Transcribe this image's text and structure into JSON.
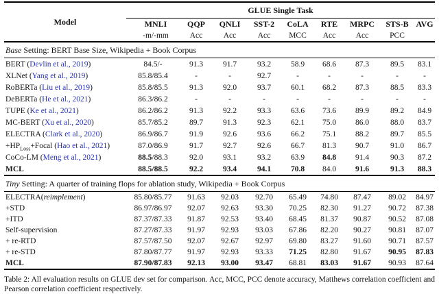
{
  "colors": {
    "citation_blue": "#2a35b0",
    "rule_black": "#000000",
    "background": "#ffffff"
  },
  "table": {
    "title": "GLUE Single Task",
    "model_header": "Model",
    "columns": [
      {
        "label": "MNLI",
        "sub": "-m/-mm"
      },
      {
        "label": "QQP",
        "sub": "Acc"
      },
      {
        "label": "QNLI",
        "sub": "Acc"
      },
      {
        "label": "SST-2",
        "sub": "Acc"
      },
      {
        "label": "CoLA",
        "sub": "MCC"
      },
      {
        "label": "RTE",
        "sub": "Acc"
      },
      {
        "label": "MRPC",
        "sub": "Acc"
      },
      {
        "label": "STS-B",
        "sub": "PCC"
      },
      {
        "label": "AVG",
        "sub": ""
      }
    ],
    "sections": [
      {
        "heading": "*Base* Setting: BERT Base Size, Wikipedia + Book Corpus",
        "size": "base",
        "rows": [
          {
            "model": "BERT",
            "cite": "Devlin et al., 2019",
            "values": [
              "84.5/-",
              "91.3",
              "91.7",
              "93.2",
              "58.9",
              "68.6",
              "87.3",
              "89.5",
              "83.1"
            ]
          },
          {
            "model": "XLNet",
            "cite": "Yang et al., 2019",
            "values": [
              "85.8/85.4",
              "-",
              "-",
              "92.7",
              "-",
              "-",
              "-",
              "-",
              "-"
            ]
          },
          {
            "model": "RoBERTa",
            "cite": "Liu et al., 2019",
            "values": [
              "85.8/85.5",
              "91.3",
              "92.0",
              "93.7",
              "60.1",
              "68.2",
              "87.3",
              "88.5",
              "83.3"
            ]
          },
          {
            "model": "DeBERTa",
            "cite": "He et al., 2021",
            "values": [
              "86.3/86.2",
              "-",
              "-",
              "-",
              "-",
              "-",
              "-",
              "-",
              "-"
            ]
          },
          {
            "model": "TUPE",
            "cite": "Ke et al., 2021",
            "values": [
              "86.2/86.2",
              "91.3",
              "92.2",
              "93.3",
              "63.6",
              "73.6",
              "89.9",
              "89.2",
              "84.9"
            ]
          },
          {
            "model": "MC-BERT",
            "cite": "Xu et al., 2020",
            "values": [
              "85.7/85.2",
              "89.7",
              "91.3",
              "92.3",
              "62.1",
              "75.0",
              "86.0",
              "88.0",
              "83.7"
            ]
          },
          {
            "model": "ELECTRA",
            "cite": "Clark et al., 2020",
            "values": [
              "86.9/86.7",
              "91.9",
              "92.6",
              "93.6",
              "66.2",
              "75.1",
              "88.2",
              "89.7",
              "85.5"
            ]
          },
          {
            "model": "+HP~Loss~+Focal",
            "cite": "Hao et al., 2021",
            "values": [
              "87.0/86.9",
              "91.7",
              "92.7",
              "92.6",
              "66.7",
              "81.3",
              "90.7",
              "91.0",
              "86.7"
            ]
          },
          {
            "model": "CoCo-LM",
            "cite": "Meng et al., 2021",
            "values": [
              "**88.5**/88.3",
              "92.0",
              "93.1",
              "93.2",
              "63.9",
              "**84.8**",
              "91.4",
              "90.3",
              "87.2"
            ]
          },
          {
            "model": "**MCL**",
            "cite": "",
            "values": [
              "**88.5/88.5**",
              "**92.2**",
              "**93.4**",
              "**94.1**",
              "**70.8**",
              "84.0",
              "**91.6**",
              "**91.3**",
              "**88.3**"
            ]
          }
        ]
      },
      {
        "heading": "*Tiny* Setting: A quarter of training flops for ablation study, Wikipedia + Book Corpus",
        "size": "tiny",
        "rows": [
          {
            "model": "ELECTRA(*reimplement*)",
            "cite": "",
            "values": [
              "85.80/85.77",
              "91.63",
              "92.03",
              "92.70",
              "65.49",
              "74.80",
              "87.47",
              "89.02",
              "84.97"
            ]
          },
          {
            "model": "+STD",
            "cite": "",
            "values": [
              "86.97/86.97",
              "92.07",
              "92.63",
              "93.30",
              "70.25",
              "82.30",
              "91.27",
              "90.72",
              "87.38"
            ]
          },
          {
            "model": "+ITD",
            "cite": "",
            "values": [
              "87.37/87.33",
              "91.87",
              "92.53",
              "93.40",
              "68.45",
              "81.37",
              "90.87",
              "90.52",
              "87.08"
            ]
          },
          {
            "model": "Self-supervision",
            "cite": "",
            "values": [
              "87.27/87.33",
              "91.97",
              "92.93",
              "93.03",
              "67.86",
              "82.20",
              "90.27",
              "90.81",
              "87.07"
            ]
          },
          {
            "model": "+ re-RTD",
            "cite": "",
            "values": [
              "87.57/87.50",
              "92.07",
              "92.67",
              "92.97",
              "69.80",
              "83.27",
              "91.60",
              "90.71",
              "87.57"
            ]
          },
          {
            "model": "+ re-STD",
            "cite": "",
            "values": [
              "87.80/87.77",
              "91.97",
              "92.93",
              "93.33",
              "**71.25**",
              "82.80",
              "91.67",
              "**90.95**",
              "**87.83**"
            ]
          },
          {
            "model": "**MCL**",
            "cite": "",
            "values": [
              "**87.90/87.83**",
              "**92.13**",
              "**93.00**",
              "**93.47**",
              "68.81",
              "**83.03**",
              "**91.67**",
              "90.93",
              "87.64"
            ]
          }
        ]
      }
    ]
  },
  "caption": "Table 2: All evaluation results on GLUE dev set for comparison. Acc, MCC, PCC denote accuracy, Matthews correlation coefficient and Pearson correlation coefficient respectively."
}
